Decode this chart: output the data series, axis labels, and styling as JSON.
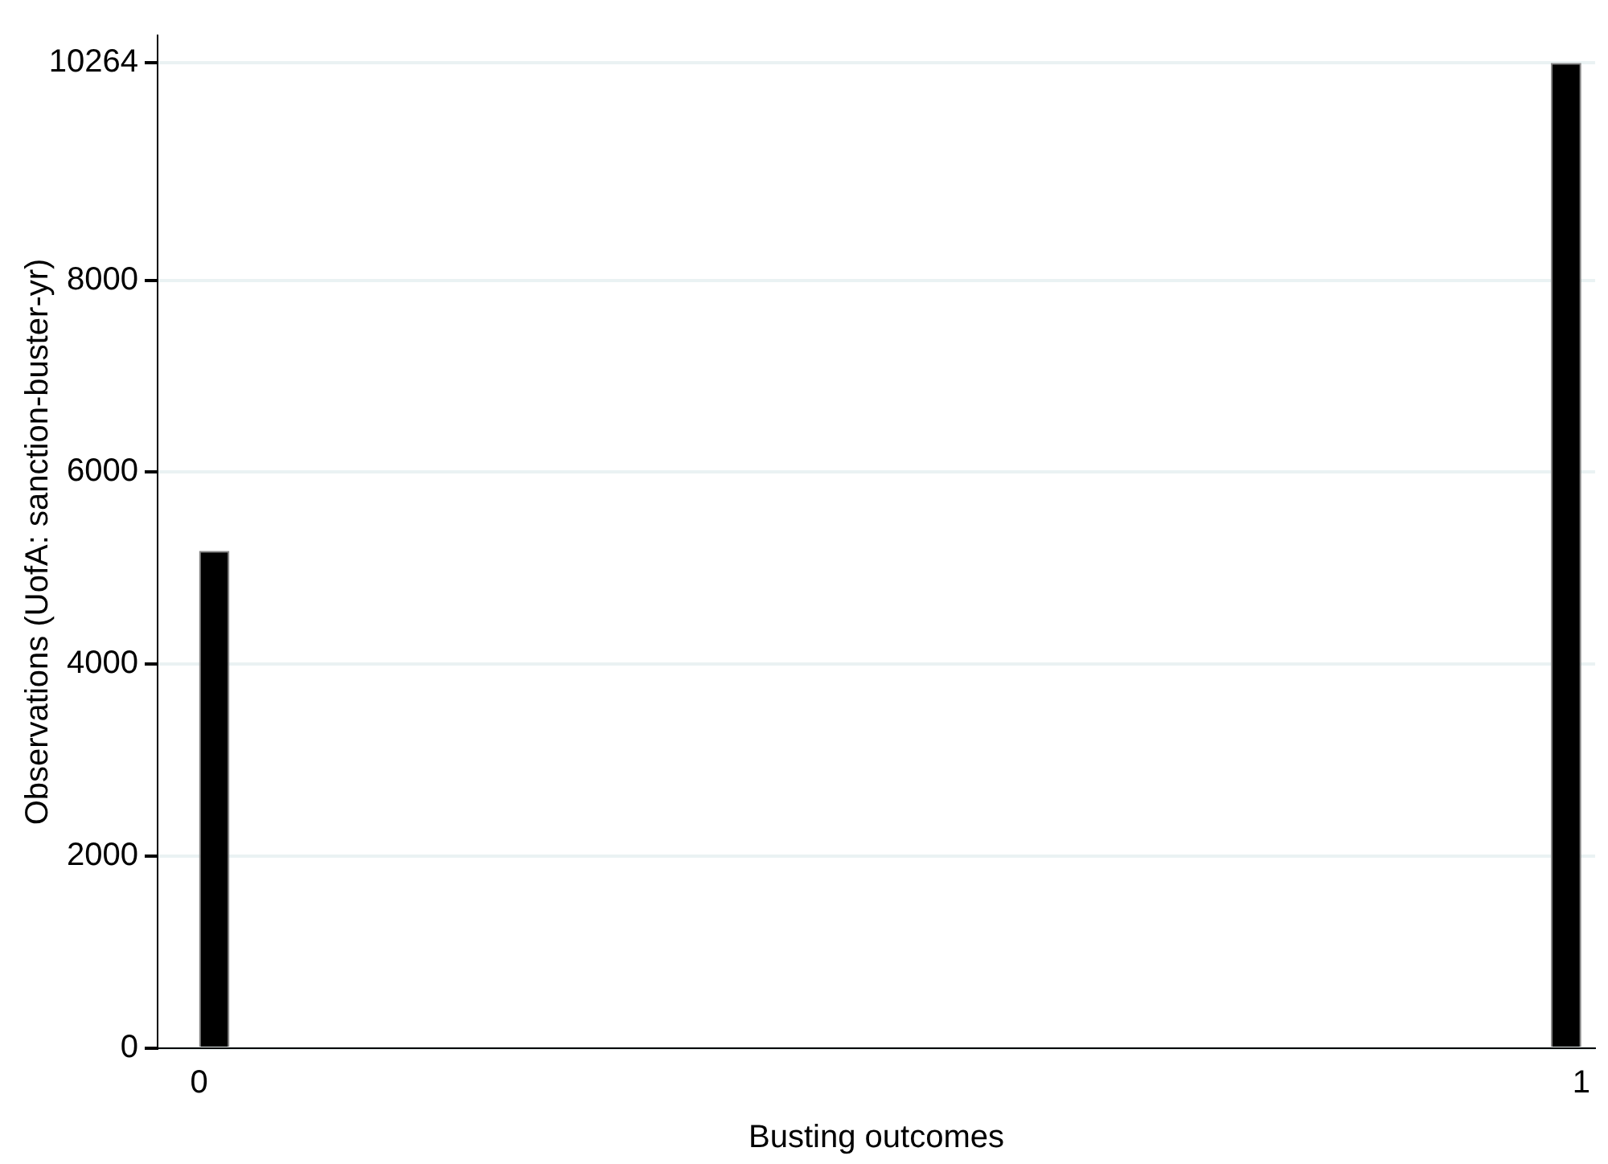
{
  "chart_data": {
    "type": "histogram",
    "xlabel": "Busting outcomes",
    "ylabel": "Observations (UofA: sanction-buster-yr)",
    "bins": [
      0,
      0.022,
      0.978,
      1
    ],
    "values": [
      5180,
      0,
      10264
    ],
    "color": "#000000",
    "xlim": [
      -0.03,
      1.01
    ],
    "xticks": [
      {
        "value": 0,
        "label": "0"
      },
      {
        "value": 1,
        "label": "1"
      }
    ],
    "ylim": [
      0,
      10550
    ],
    "yticks": [
      {
        "value": 0,
        "label": "0"
      },
      {
        "value": 2000,
        "label": "2000"
      },
      {
        "value": 4000,
        "label": "4000"
      },
      {
        "value": 6000,
        "label": "6000"
      },
      {
        "value": 8000,
        "label": "8000"
      },
      {
        "value": 10264,
        "label": "10264"
      }
    ],
    "grid": "y"
  }
}
